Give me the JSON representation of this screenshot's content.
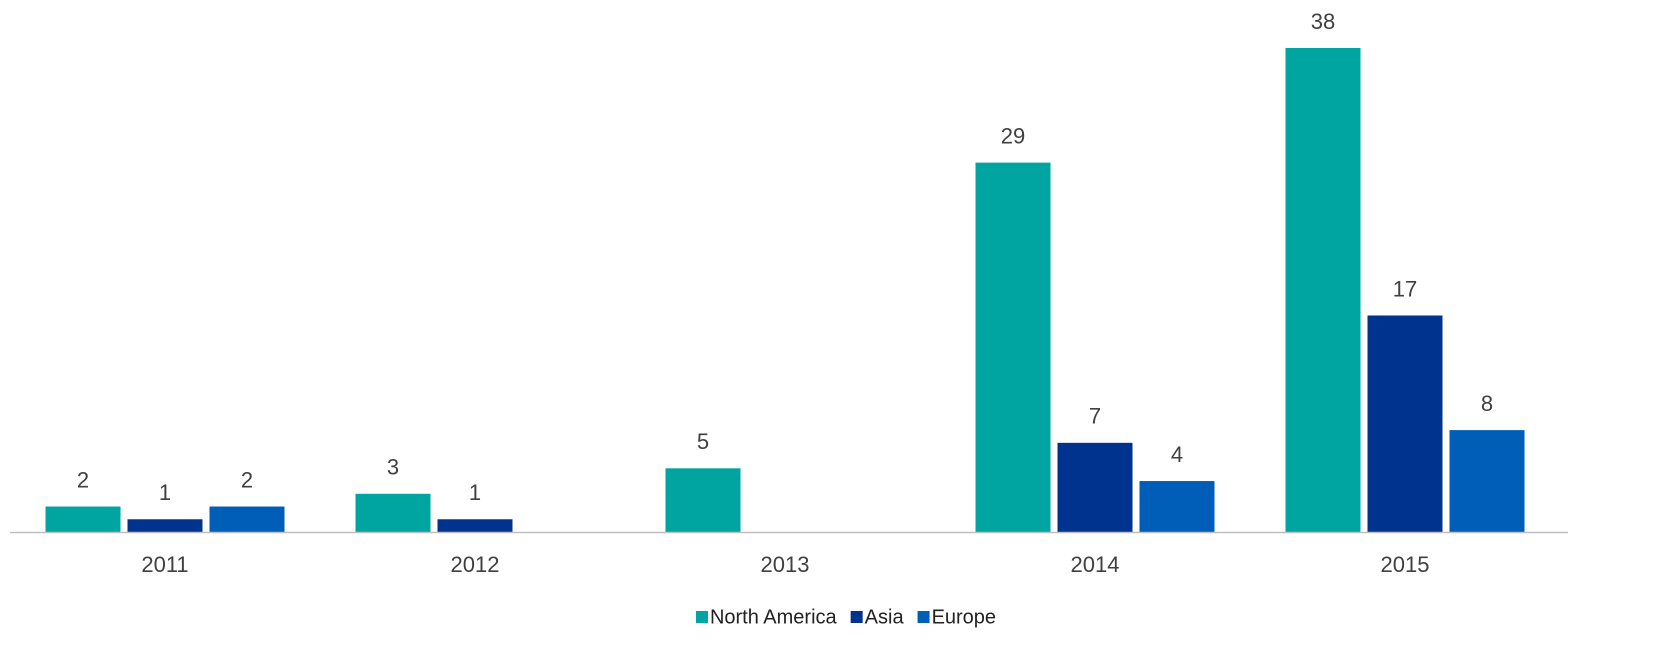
{
  "chart_data": {
    "type": "bar",
    "categories": [
      "2011",
      "2012",
      "2013",
      "2014",
      "2015"
    ],
    "series": [
      {
        "name": "North America",
        "color": "#00a5a1",
        "values": [
          2,
          3,
          5,
          29,
          38
        ]
      },
      {
        "name": "Asia",
        "color": "#00338d",
        "values": [
          1,
          1,
          null,
          7,
          17
        ]
      },
      {
        "name": "Europe",
        "color": "#005eb8",
        "values": [
          2,
          null,
          null,
          4,
          8
        ]
      }
    ],
    "legend": "bottom"
  }
}
